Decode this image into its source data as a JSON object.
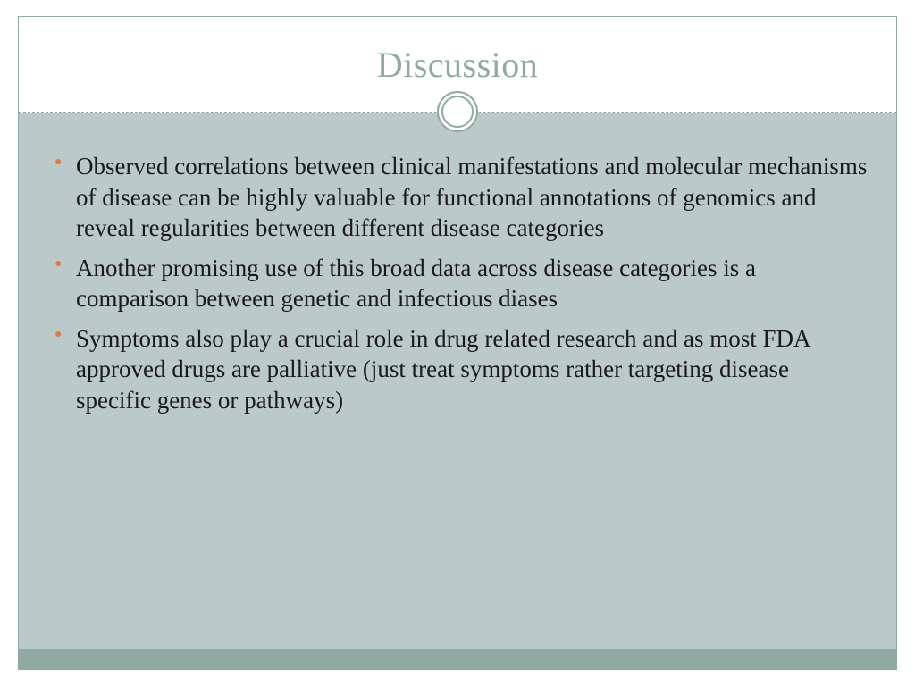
{
  "colors": {
    "title_color": "#8fa9a3",
    "bullet_color": "#d97b4a",
    "body_bg": "#bcc9c9",
    "footer_bg": "#8fa9a3",
    "border_color": "#8fa9a3",
    "text_color": "#1a1a1a"
  },
  "title": "Discussion",
  "bullets": [
    "Observed correlations between clinical manifestations and molecular mechanisms of disease can be highly valuable for functional annotations of genomics and reveal regularities between different disease categories",
    "Another promising use of this broad data across disease categories is a comparison between genetic and infectious diases",
    "Symptoms also play a crucial role in drug related research and as most FDA approved drugs are palliative (just treat symptoms rather targeting disease specific genes or pathways)"
  ],
  "typography": {
    "title_fontsize": 40,
    "body_fontsize": 27,
    "font_family": "Georgia serif"
  }
}
